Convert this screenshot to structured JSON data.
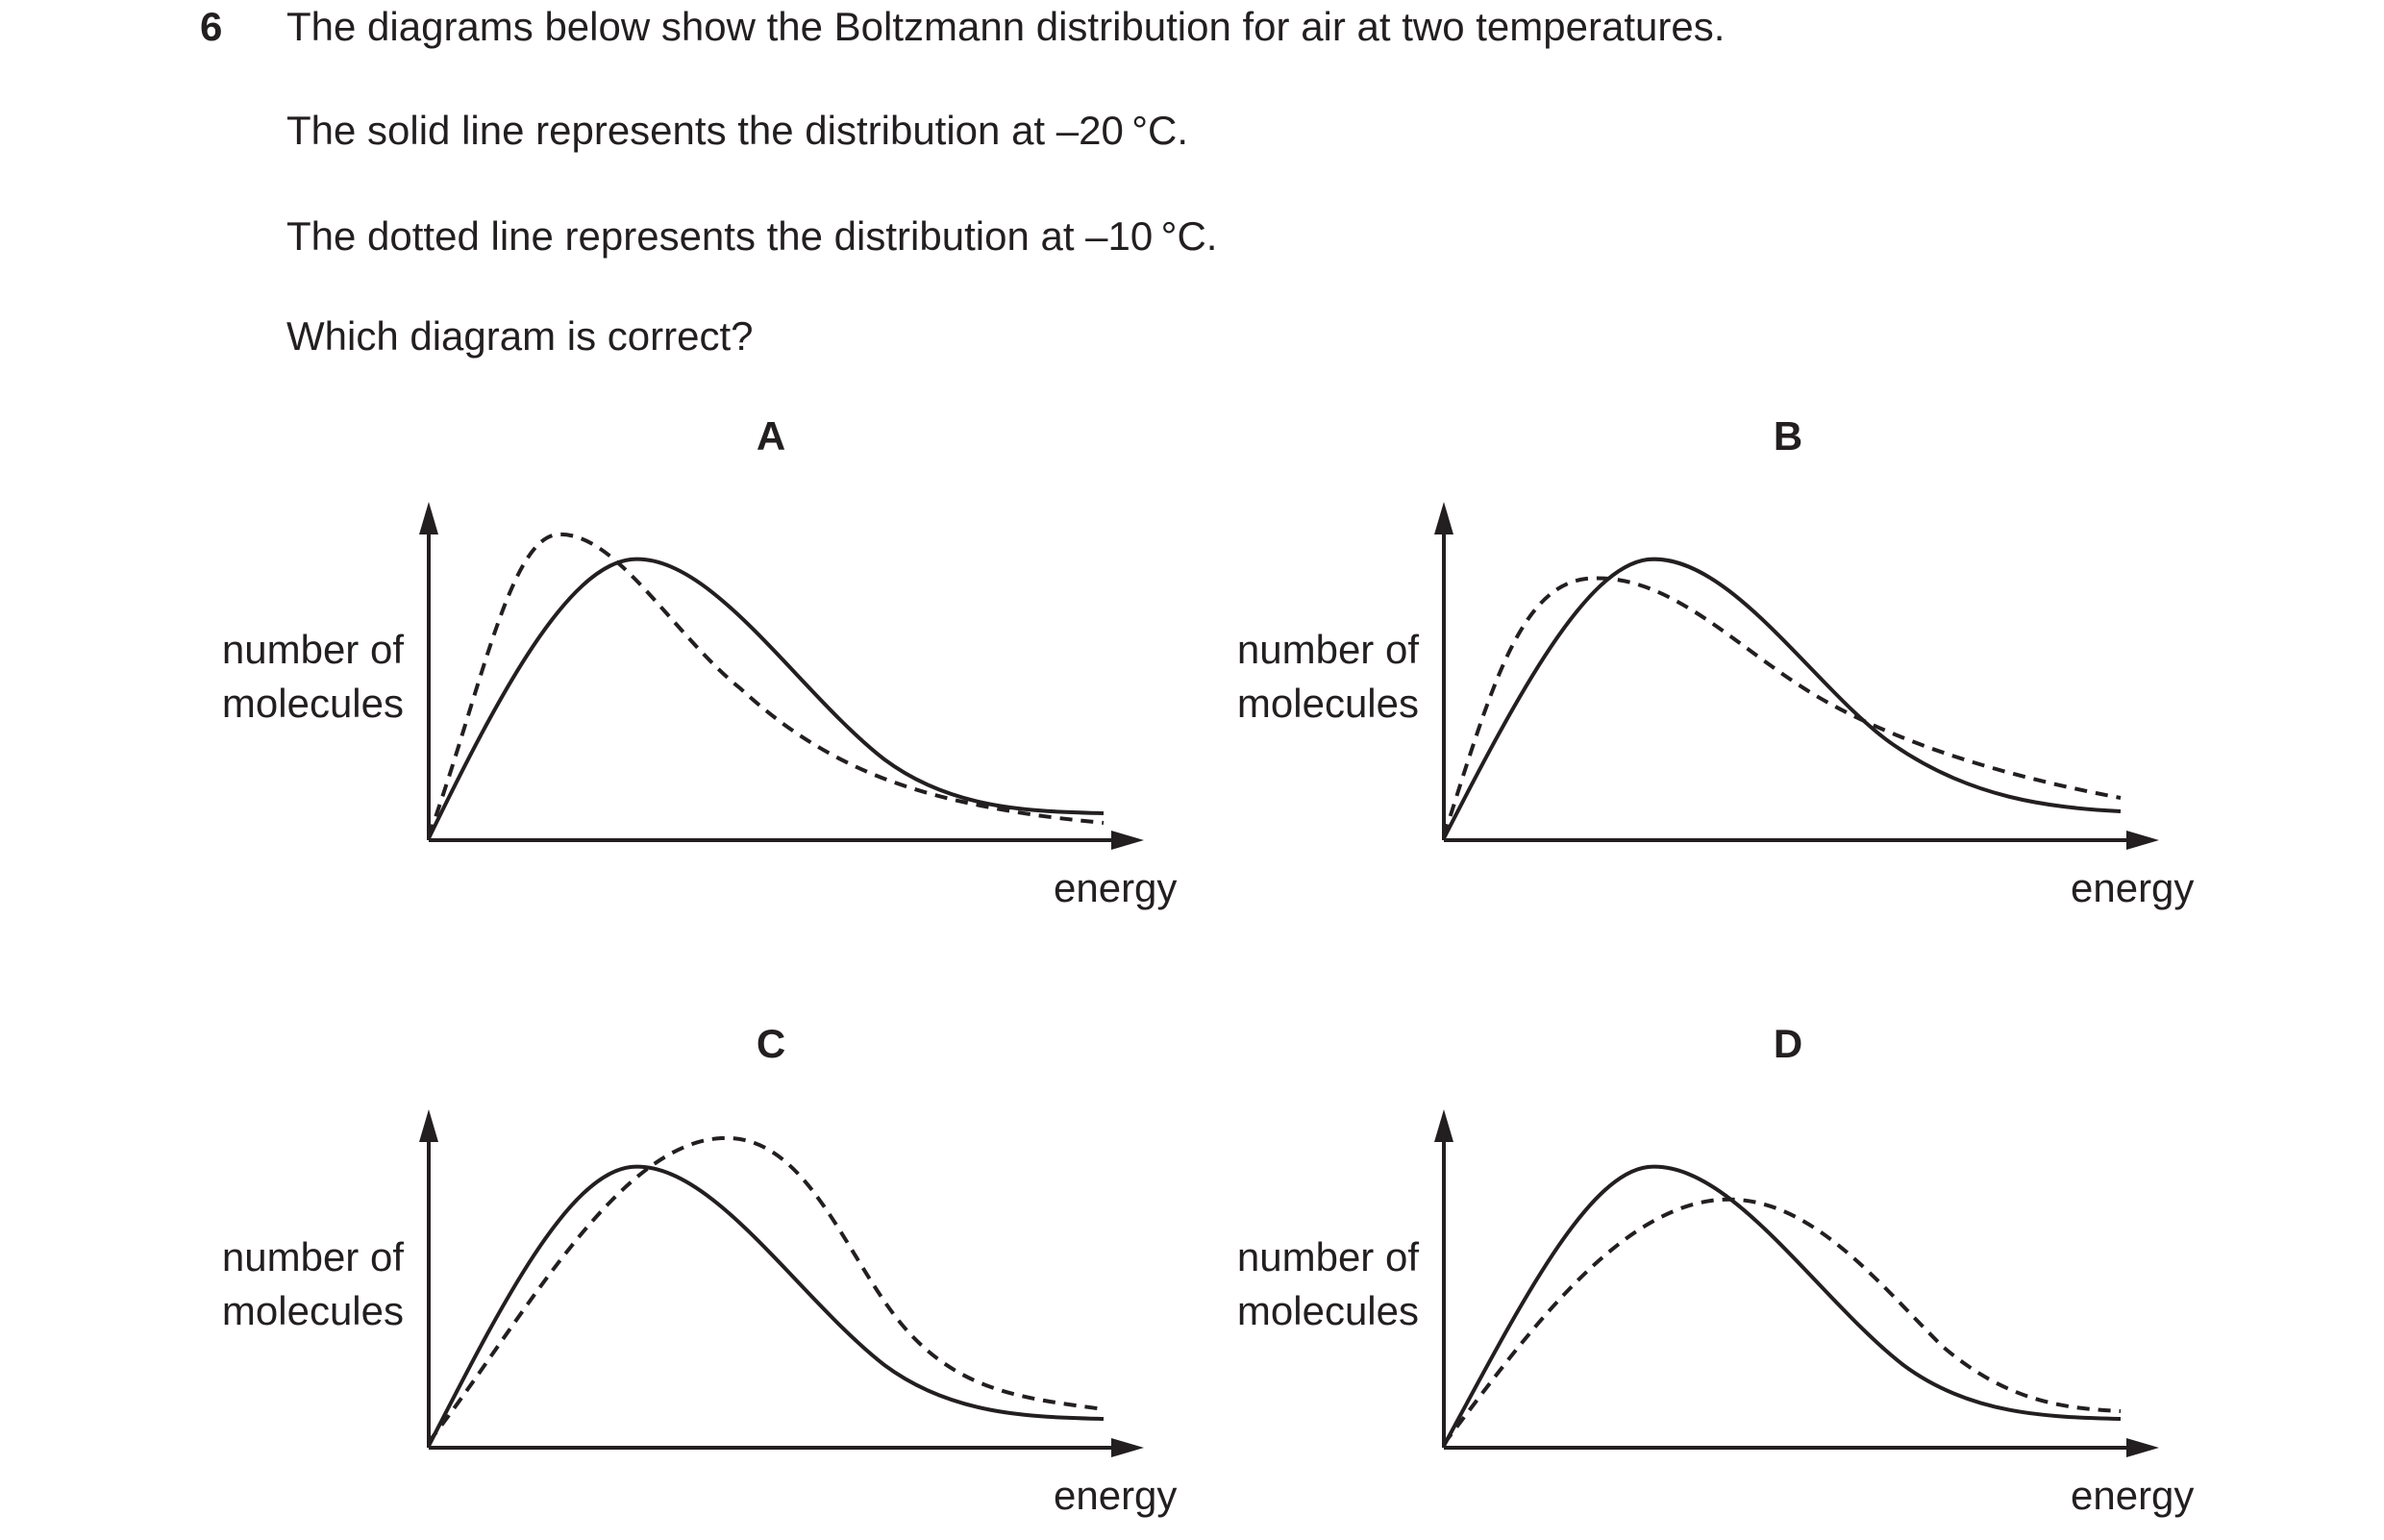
{
  "question": {
    "number": "6",
    "lines": [
      "The diagrams below show the Boltzmann distribution for air at two temperatures.",
      "The solid line represents the distribution at –20 °C.",
      "The dotted line represents the distribution at –10 °C.",
      "Which diagram is correct?"
    ]
  },
  "axes": {
    "ylabel_line1": "number of",
    "ylabel_line2": "molecules",
    "xlabel": "energy"
  },
  "options": [
    {
      "letter": "A"
    },
    {
      "letter": "B"
    },
    {
      "letter": "C"
    },
    {
      "letter": "D"
    }
  ],
  "colors": {
    "ink": "#231f20"
  }
}
